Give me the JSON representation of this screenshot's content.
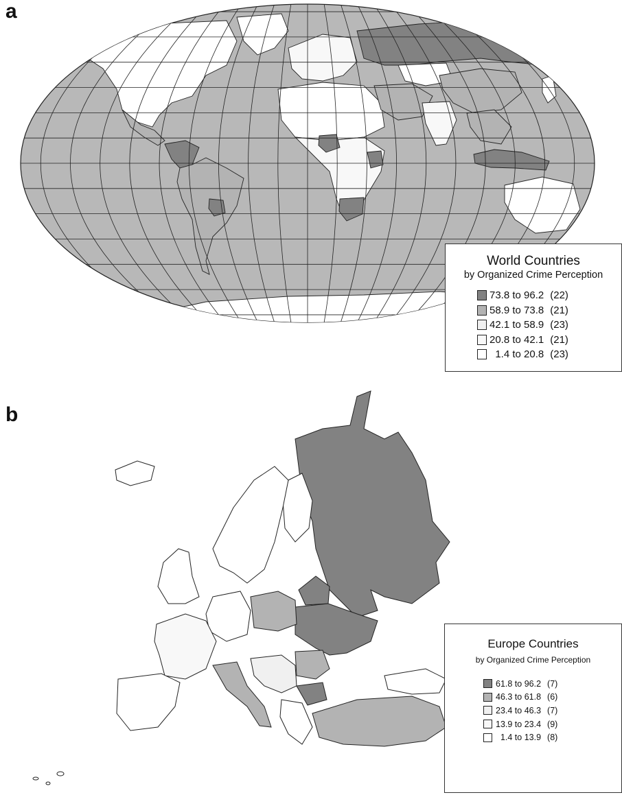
{
  "panel_labels": {
    "a": "a",
    "b": "b"
  },
  "colors": {
    "ocean": "#b8b8b8",
    "class_1": "#828282",
    "class_2": "#b3b3b3",
    "class_3": "#f0f0f0",
    "class_4": "#f8f8f8",
    "class_5": "#ffffff",
    "outline": "#222222"
  },
  "world_legend": {
    "title": "World Countries",
    "subtitle": "by Organized Crime Perception",
    "classes": [
      {
        "range": "73.8 to 96.2",
        "count": "(22)",
        "color_key": "class_1"
      },
      {
        "range": "58.9 to 73.8",
        "count": "(21)",
        "color_key": "class_2"
      },
      {
        "range": "42.1 to 58.9",
        "count": "(23)",
        "color_key": "class_3"
      },
      {
        "range": "20.8 to 42.1",
        "count": "(21)",
        "color_key": "class_4"
      },
      {
        "range": "  1.4 to 20.8",
        "count": "(23)",
        "color_key": "class_5"
      }
    ]
  },
  "europe_legend": {
    "title": "Europe Countries",
    "subtitle": "by  Organized Crime Perception",
    "classes": [
      {
        "range": "61.8 to 96.2",
        "count": "(7)",
        "color_key": "class_1"
      },
      {
        "range": "46.3 to 61.8",
        "count": "(6)",
        "color_key": "class_2"
      },
      {
        "range": "23.4 to 46.3",
        "count": "(7)",
        "color_key": "class_3"
      },
      {
        "range": "13.9 to 23.4",
        "count": "(9)",
        "color_key": "class_4"
      },
      {
        "range": "  1.4 to 13.9",
        "count": "(8)",
        "color_key": "class_5"
      }
    ]
  },
  "world_regions": [
    {
      "name": "north-america",
      "class": "class_5"
    },
    {
      "name": "greenland",
      "class": "class_5"
    },
    {
      "name": "central-america",
      "class": "class_2"
    },
    {
      "name": "venezuela-colombia",
      "class": "class_1"
    },
    {
      "name": "south-america",
      "class": "class_2"
    },
    {
      "name": "paraguay",
      "class": "class_1"
    },
    {
      "name": "europe-west",
      "class": "class_4"
    },
    {
      "name": "africa-north",
      "class": "class_5"
    },
    {
      "name": "africa-central",
      "class": "class_4"
    },
    {
      "name": "nigeria",
      "class": "class_1"
    },
    {
      "name": "kenya",
      "class": "class_1"
    },
    {
      "name": "south-africa",
      "class": "class_1"
    },
    {
      "name": "russia",
      "class": "class_1"
    },
    {
      "name": "kazakhstan",
      "class": "class_5"
    },
    {
      "name": "china",
      "class": "class_2"
    },
    {
      "name": "middle-east",
      "class": "class_2"
    },
    {
      "name": "india",
      "class": "class_4"
    },
    {
      "name": "southeast-asia",
      "class": "class_2"
    },
    {
      "name": "indonesia",
      "class": "class_1"
    },
    {
      "name": "australia",
      "class": "class_5"
    },
    {
      "name": "antarctica",
      "class": "class_5"
    },
    {
      "name": "japan",
      "class": "class_5"
    }
  ],
  "europe_regions": [
    {
      "name": "russia",
      "class": "class_1"
    },
    {
      "name": "ukraine",
      "class": "class_1"
    },
    {
      "name": "belarus",
      "class": "class_1"
    },
    {
      "name": "scandinavia",
      "class": "class_5"
    },
    {
      "name": "finland",
      "class": "class_5"
    },
    {
      "name": "iceland",
      "class": "class_5"
    },
    {
      "name": "uk-ireland",
      "class": "class_5"
    },
    {
      "name": "france",
      "class": "class_4"
    },
    {
      "name": "iberia",
      "class": "class_5"
    },
    {
      "name": "germany",
      "class": "class_5"
    },
    {
      "name": "poland",
      "class": "class_2"
    },
    {
      "name": "italy",
      "class": "class_2"
    },
    {
      "name": "romania",
      "class": "class_2"
    },
    {
      "name": "bulgaria",
      "class": "class_1"
    },
    {
      "name": "balkans",
      "class": "class_3"
    },
    {
      "name": "greece",
      "class": "class_5"
    },
    {
      "name": "turkey",
      "class": "class_2"
    },
    {
      "name": "caucasus",
      "class": "class_5"
    }
  ]
}
